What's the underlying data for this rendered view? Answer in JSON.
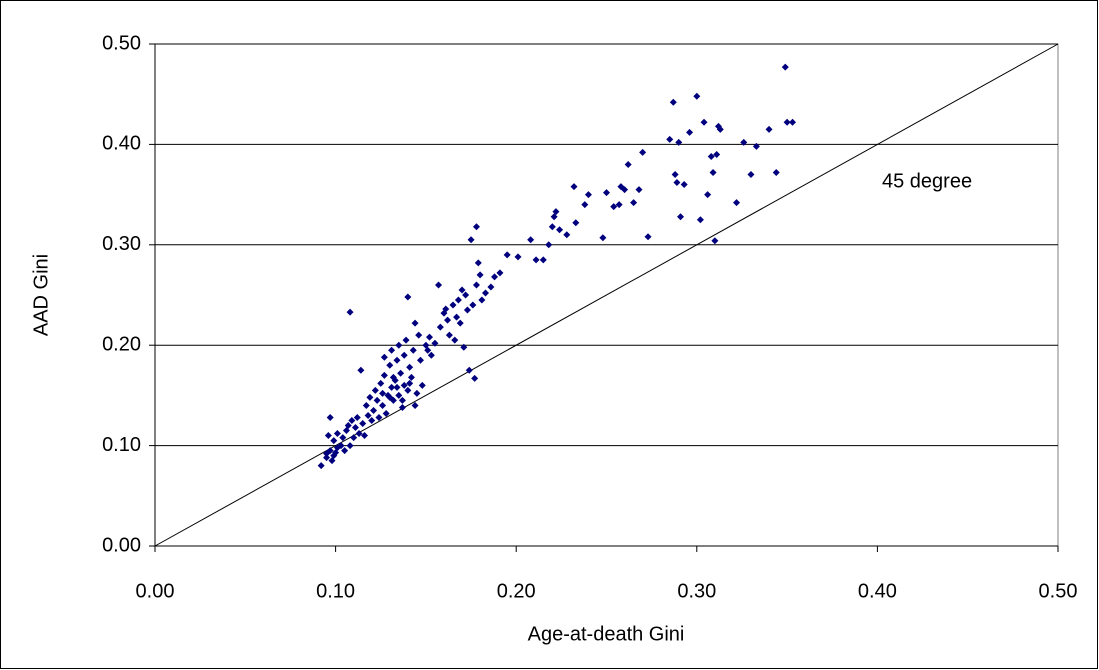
{
  "chart_data": {
    "type": "scatter",
    "x_label": "Age-at-death Gini",
    "y_label": "AAD Gini",
    "annotation": "45 degree",
    "xlim": [
      0,
      0.5
    ],
    "ylim": [
      0,
      0.5
    ],
    "xticks": [
      {
        "value": 0,
        "label": "0.00"
      },
      {
        "value": 0.1,
        "label": "0.10"
      },
      {
        "value": 0.2,
        "label": "0.20"
      },
      {
        "value": 0.3,
        "label": "0.30"
      },
      {
        "value": 0.4,
        "label": "0.40"
      },
      {
        "value": 0.5,
        "label": "0.50"
      }
    ],
    "yticks": [
      {
        "value": 0,
        "label": "0.00"
      },
      {
        "value": 0.1,
        "label": "0.10"
      },
      {
        "value": 0.2,
        "label": "0.20"
      },
      {
        "value": 0.3,
        "label": "0.30"
      },
      {
        "value": 0.4,
        "label": "0.40"
      },
      {
        "value": 0.5,
        "label": "0.50"
      }
    ],
    "grid": true,
    "color": "#00007f",
    "x": [
      0.092,
      0.095,
      0.095,
      0.097,
      0.098,
      0.099,
      0.1,
      0.101,
      0.096,
      0.097,
      0.099,
      0.101,
      0.103,
      0.104,
      0.105,
      0.106,
      0.107,
      0.108,
      0.108,
      0.109,
      0.11,
      0.111,
      0.112,
      0.113,
      0.114,
      0.115,
      0.116,
      0.117,
      0.118,
      0.119,
      0.12,
      0.121,
      0.122,
      0.123,
      0.124,
      0.125,
      0.126,
      0.127,
      0.127,
      0.128,
      0.129,
      0.13,
      0.131,
      0.131,
      0.132,
      0.133,
      0.134,
      0.135,
      0.135,
      0.136,
      0.137,
      0.138,
      0.138,
      0.139,
      0.14,
      0.14,
      0.141,
      0.142,
      0.143,
      0.144,
      0.144,
      0.145,
      0.146,
      0.147,
      0.148,
      0.15,
      0.151,
      0.152,
      0.153,
      0.155,
      0.157,
      0.158,
      0.16,
      0.161,
      0.162,
      0.163,
      0.165,
      0.166,
      0.167,
      0.168,
      0.169,
      0.17,
      0.171,
      0.172,
      0.173,
      0.174,
      0.175,
      0.176,
      0.177,
      0.178,
      0.178,
      0.179,
      0.18,
      0.181,
      0.183,
      0.186,
      0.188,
      0.191,
      0.195,
      0.201,
      0.208,
      0.211,
      0.215,
      0.218,
      0.22,
      0.221,
      0.222,
      0.224,
      0.228,
      0.232,
      0.233,
      0.238,
      0.24,
      0.248,
      0.25,
      0.254,
      0.257,
      0.258,
      0.26,
      0.262,
      0.265,
      0.268,
      0.27,
      0.273,
      0.285,
      0.287,
      0.288,
      0.289,
      0.29,
      0.291,
      0.293,
      0.296,
      0.3,
      0.302,
      0.304,
      0.306,
      0.308,
      0.309,
      0.31,
      0.311,
      0.312,
      0.313,
      0.322,
      0.326,
      0.33,
      0.333,
      0.34,
      0.344,
      0.349,
      0.35,
      0.353,
      0.13,
      0.134,
      0.137,
      0.141,
      0.126,
      0.132
    ],
    "values": [
      0.08,
      0.088,
      0.092,
      0.095,
      0.085,
      0.09,
      0.093,
      0.098,
      0.11,
      0.128,
      0.105,
      0.112,
      0.1,
      0.108,
      0.095,
      0.115,
      0.12,
      0.1,
      0.233,
      0.125,
      0.108,
      0.118,
      0.128,
      0.112,
      0.175,
      0.122,
      0.11,
      0.14,
      0.13,
      0.148,
      0.125,
      0.135,
      0.155,
      0.145,
      0.128,
      0.162,
      0.14,
      0.17,
      0.188,
      0.132,
      0.15,
      0.18,
      0.158,
      0.195,
      0.145,
      0.165,
      0.185,
      0.15,
      0.2,
      0.172,
      0.138,
      0.16,
      0.19,
      0.205,
      0.155,
      0.248,
      0.178,
      0.168,
      0.195,
      0.14,
      0.222,
      0.152,
      0.21,
      0.185,
      0.16,
      0.2,
      0.195,
      0.208,
      0.19,
      0.202,
      0.26,
      0.218,
      0.232,
      0.236,
      0.225,
      0.21,
      0.24,
      0.205,
      0.228,
      0.245,
      0.222,
      0.255,
      0.198,
      0.25,
      0.235,
      0.175,
      0.305,
      0.24,
      0.167,
      0.318,
      0.26,
      0.282,
      0.27,
      0.245,
      0.252,
      0.258,
      0.268,
      0.272,
      0.29,
      0.288,
      0.305,
      0.285,
      0.285,
      0.3,
      0.318,
      0.328,
      0.333,
      0.315,
      0.31,
      0.358,
      0.322,
      0.34,
      0.35,
      0.307,
      0.352,
      0.338,
      0.34,
      0.358,
      0.355,
      0.38,
      0.342,
      0.355,
      0.392,
      0.308,
      0.405,
      0.442,
      0.37,
      0.362,
      0.402,
      0.328,
      0.36,
      0.412,
      0.448,
      0.325,
      0.422,
      0.35,
      0.388,
      0.372,
      0.304,
      0.39,
      0.418,
      0.415,
      0.342,
      0.402,
      0.37,
      0.398,
      0.415,
      0.372,
      0.477,
      0.422,
      0.422,
      0.148,
      0.158,
      0.145,
      0.162,
      0.152,
      0.168
    ]
  }
}
